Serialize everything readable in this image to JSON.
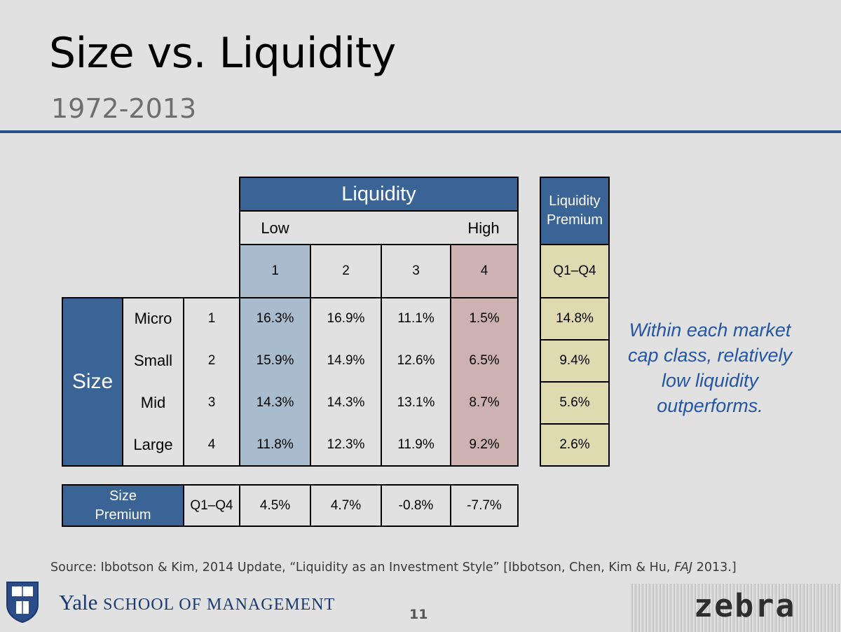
{
  "slide": {
    "title": "Size vs. Liquidity",
    "subtitle": "1972-2013",
    "page_number": "11"
  },
  "table": {
    "liquidity_header": "Liquidity",
    "low_label": "Low",
    "high_label": "High",
    "liquidity_quartiles": [
      "1",
      "2",
      "3",
      "4"
    ],
    "liquidity_premium_header": "Liquidity Premium",
    "liquidity_premium_col_label": "Q1–Q4",
    "size_header": "Size",
    "rows": [
      {
        "size": "Micro",
        "quartile": "1",
        "values": [
          "16.3%",
          "16.9%",
          "11.1%",
          "1.5%"
        ],
        "premium": "14.8%"
      },
      {
        "size": "Small",
        "quartile": "2",
        "values": [
          "15.9%",
          "14.9%",
          "12.6%",
          "6.5%"
        ],
        "premium": "9.4%"
      },
      {
        "size": "Mid",
        "quartile": "3",
        "values": [
          "14.3%",
          "14.3%",
          "13.1%",
          "8.7%"
        ],
        "premium": "5.6%"
      },
      {
        "size": "Large",
        "quartile": "4",
        "values": [
          "11.8%",
          "12.3%",
          "11.9%",
          "9.2%"
        ],
        "premium": "2.6%"
      }
    ],
    "size_premium_header": "Size Premium",
    "size_premium_label": "Q1–Q4",
    "size_premium_values": [
      "4.5%",
      "4.7%",
      "-0.8%",
      "-7.7%"
    ]
  },
  "note": "Within each market cap class, relatively low liquidity outperforms.",
  "source": {
    "prefix": "Source: Ibbotson & Kim, 2014 Update, “Liquidity as an Investment Style” [Ibbotson, Chen, Kim & Hu, ",
    "journal": "FAJ",
    "suffix": " 2013.]"
  },
  "footer": {
    "yale": "Yale",
    "school": "SCHOOL OF MANAGEMENT",
    "zebra": "zebra"
  },
  "colors": {
    "header_blue": "#3b6496",
    "rule_blue": "#26508c",
    "low_column": "#a9bcce",
    "high_column": "#ceb2b2",
    "premium": "#dfdbb1",
    "note_text": "#2456a5"
  }
}
